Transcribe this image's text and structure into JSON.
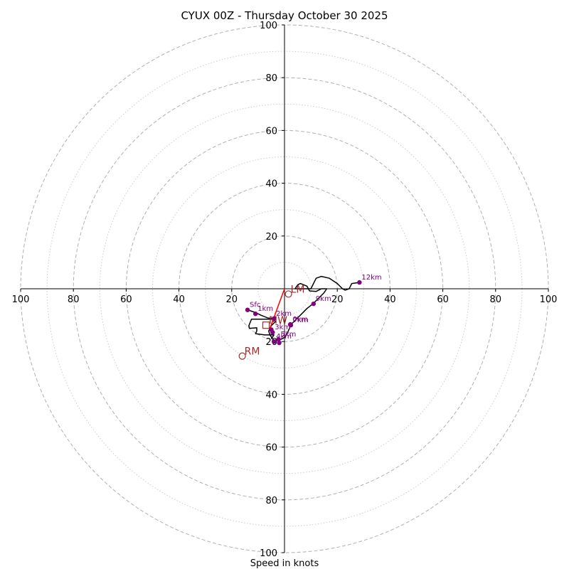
{
  "chart_data": {
    "type": "hodograph",
    "title": "CYUX 00Z - Thursday October 30 2025",
    "xlabel": "Speed in knots",
    "max_speed": 100,
    "ring_major": [
      20,
      40,
      60,
      80,
      100
    ],
    "ring_minor": [
      10,
      30,
      50,
      70,
      90
    ],
    "x_tick_labels": [
      "100",
      "80",
      "60",
      "40",
      "20",
      "20",
      "40",
      "60",
      "80",
      "100"
    ],
    "x_tick_values": [
      -100,
      -80,
      -60,
      -40,
      -20,
      20,
      40,
      60,
      80,
      100
    ],
    "y_tick_labels": [
      "100",
      "80",
      "60",
      "40",
      "20",
      "20",
      "40",
      "60",
      "80",
      "100"
    ],
    "y_tick_values": [
      100,
      80,
      60,
      40,
      20,
      -20,
      -40,
      -60,
      -80,
      -100
    ],
    "colors": {
      "trace": "#000000",
      "height_marker": "#800080",
      "storm_motion": "#a52a2a",
      "shear_vector": "#ff0000",
      "ring_major": "#b0b0b0",
      "ring_minor": "#cccccc"
    },
    "trace": [
      [
        -14,
        -8
      ],
      [
        -12.5,
        -8.5
      ],
      [
        -11,
        -9
      ],
      [
        -9,
        -10
      ],
      [
        -6.5,
        -11
      ],
      [
        -4,
        -11.5
      ],
      [
        -3.5,
        -12.5
      ],
      [
        -5,
        -14
      ],
      [
        -6,
        -16
      ],
      [
        -5.5,
        -17.5
      ],
      [
        -4.5,
        -19
      ],
      [
        -4,
        -20
      ],
      [
        -3.5,
        -20
      ],
      [
        -2.8,
        -19.5
      ],
      [
        -2,
        -19.3
      ],
      [
        -1,
        -19
      ],
      [
        0,
        -18.5
      ],
      [
        1,
        -17
      ],
      [
        2.5,
        -13.5
      ],
      [
        4,
        -12
      ],
      [
        6,
        -10
      ],
      [
        8.5,
        -7.5
      ],
      [
        11,
        -5.5
      ],
      [
        13,
        -3.5
      ],
      [
        15,
        -1.5
      ],
      [
        16,
        0
      ],
      [
        14,
        0
      ],
      [
        12,
        -1
      ],
      [
        9.5,
        -0.8
      ],
      [
        8.5,
        1
      ],
      [
        6,
        2
      ],
      [
        5,
        1.5
      ],
      [
        4,
        0
      ],
      [
        6,
        0
      ],
      [
        10,
        0
      ],
      [
        12,
        4
      ],
      [
        14,
        4.7
      ],
      [
        17,
        4
      ],
      [
        20,
        2
      ],
      [
        22,
        0
      ],
      [
        23,
        -0.5
      ],
      [
        24.5,
        0
      ],
      [
        25.5,
        2
      ],
      [
        28.4,
        2.4
      ]
    ],
    "trace_extra": [
      [
        -4,
        -11.5
      ],
      [
        -7,
        -11.5
      ],
      [
        -10,
        -11.5
      ],
      [
        -12.5,
        -11.5
      ],
      [
        -13.5,
        -14
      ],
      [
        -13.3,
        -15
      ],
      [
        -10.5,
        -14.8
      ],
      [
        -10.5,
        -16
      ],
      [
        -11,
        -17
      ],
      [
        -7.5,
        -17.5
      ],
      [
        -4,
        -17.5
      ],
      [
        -5,
        -19
      ]
    ],
    "height_markers": [
      {
        "label": "Sfc",
        "u": -14,
        "v": -8
      },
      {
        "label": "1km",
        "u": -11,
        "v": -9.5
      },
      {
        "label": "2km",
        "u": -4,
        "v": -11.3
      },
      {
        "label": "3km",
        "u": -4.5,
        "v": -16.5
      },
      {
        "label": "4km",
        "u": -4,
        "v": -20
      },
      {
        "label": "5km",
        "u": -2.3,
        "v": -19.2
      },
      {
        "label": "6km",
        "u": 2.2,
        "v": -13.5
      },
      {
        "label": "7km",
        "u": 2.4,
        "v": -13.8
      },
      {
        "label": "9km",
        "u": 11,
        "v": -5.7
      },
      {
        "label": "12km",
        "u": 28.4,
        "v": 2.4
      }
    ],
    "extra_markers": [
      {
        "u": -2,
        "v": -20.5
      },
      {
        "u": -5,
        "v": -15.5
      }
    ],
    "storm_motions": [
      {
        "label": "LM",
        "u": 1.5,
        "v": -2
      },
      {
        "label": "RM",
        "u": -16,
        "v": -25.5
      }
    ],
    "mean_wind": {
      "label": "MW",
      "u": -7,
      "v": -13.8
    },
    "shear_vector": {
      "u0": -5.5,
      "v0": -15,
      "u1": 0,
      "v1": 0
    }
  }
}
